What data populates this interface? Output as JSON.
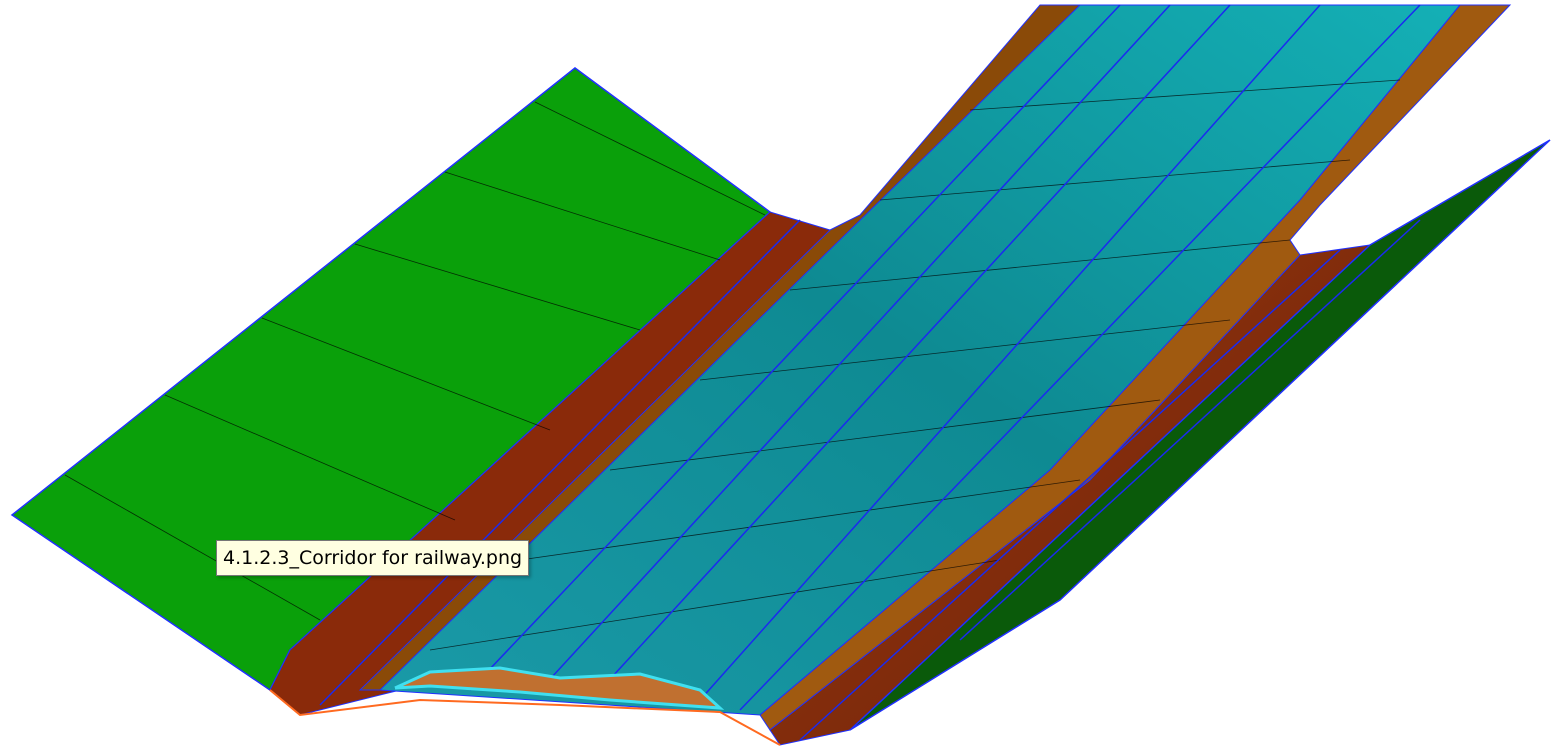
{
  "tooltip": {
    "text": "4.1.2.3_Corridor for railway.png"
  }
}
